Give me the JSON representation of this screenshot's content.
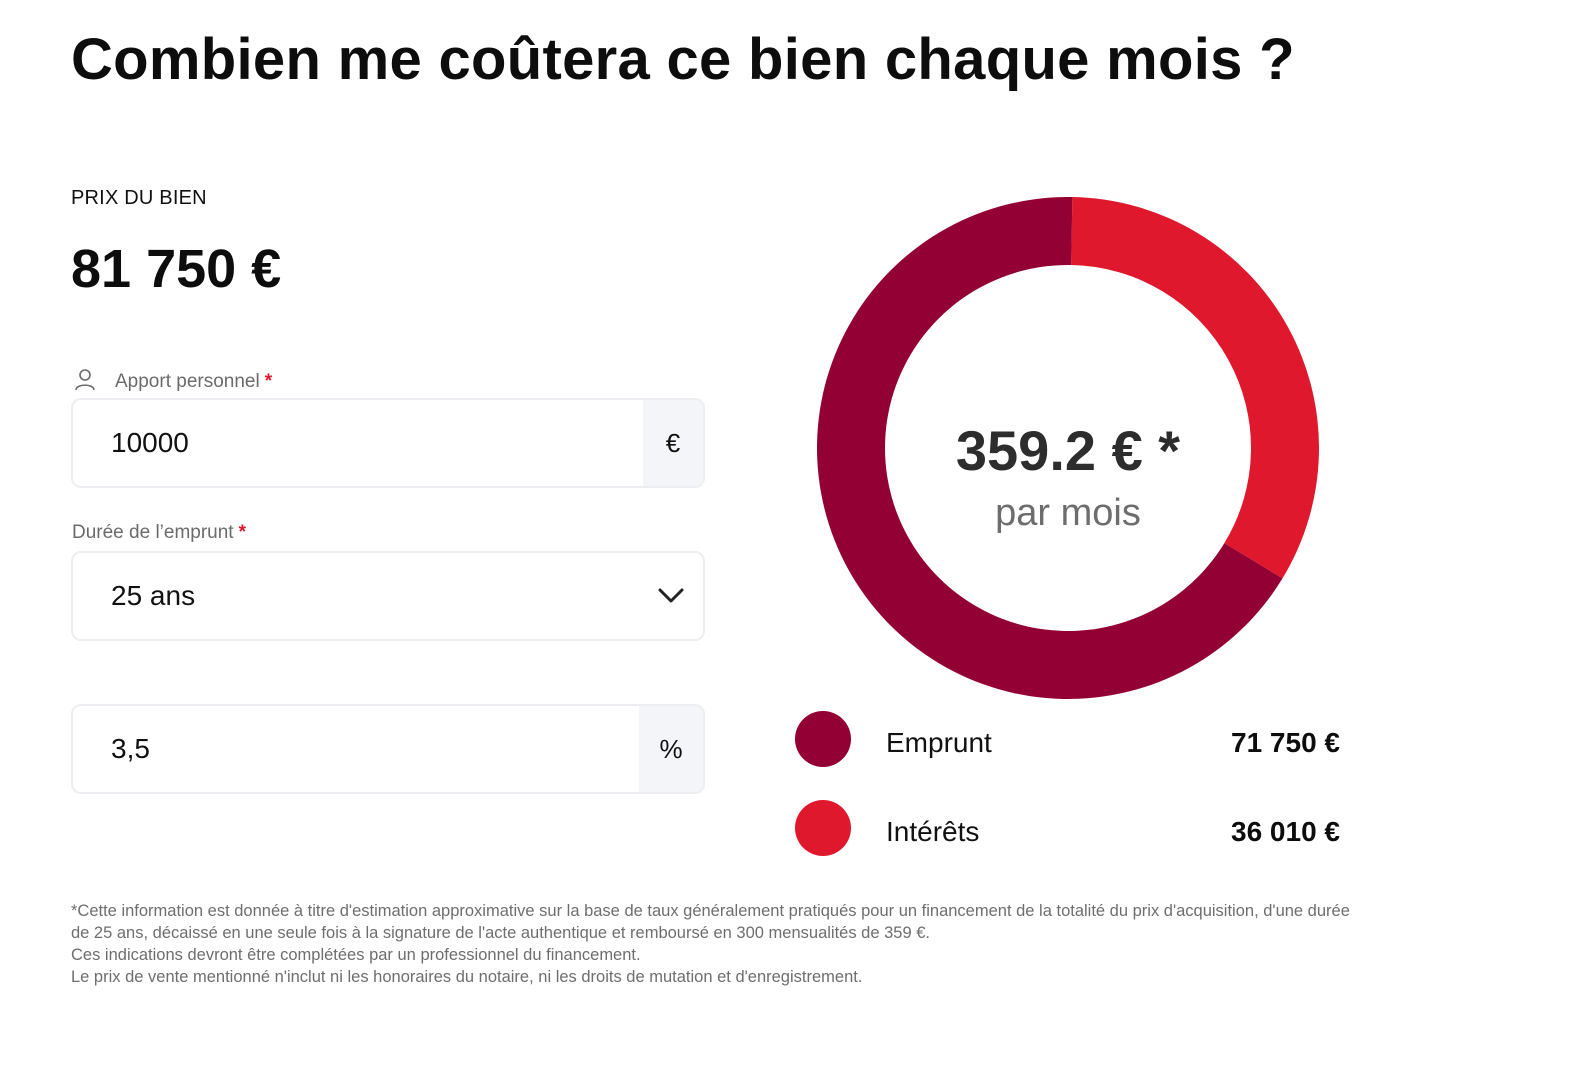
{
  "title": "Combien me coûtera ce bien chaque mois ?",
  "price": {
    "label": "PRIX DU BIEN",
    "value": "81 750 €"
  },
  "apport": {
    "icon": "user-icon",
    "label": "Apport personnel",
    "required_mark": "*",
    "value": "10000",
    "suffix": "€"
  },
  "duree": {
    "label": "Durée de l’emprunt",
    "required_mark": "*",
    "value": "25 ans",
    "icon": "chevron-down-icon"
  },
  "taux": {
    "value": "3,5",
    "suffix": "%"
  },
  "chart_data": {
    "type": "pie",
    "style": "donut",
    "center_value": "359.2 € *",
    "center_subtitle": "par mois",
    "slices": [
      {
        "label": "Emprunt",
        "value": 71750,
        "display": "71 750 €",
        "color": "#930033"
      },
      {
        "label": "Intérêts",
        "value": 36010,
        "display": "36 010 €",
        "color": "#e0182d"
      }
    ],
    "legend_position": "bottom"
  },
  "disclaimer": {
    "lines": [
      "*Cette information est donnée à titre d'estimation approximative sur la base de taux généralement pratiqués pour un financement de la totalité du prix d'acquisition, d'une durée",
      "de 25 ans, décaissé en une seule fois à la signature de l'acte authentique et remboursé en 300 mensualités de 359 €.",
      "Ces indications devront être complétées par un professionnel du financement.",
      "Le prix de vente mentionné n'inclut ni les honoraires du notaire, ni les droits de mutation et d'enregistrement."
    ]
  }
}
